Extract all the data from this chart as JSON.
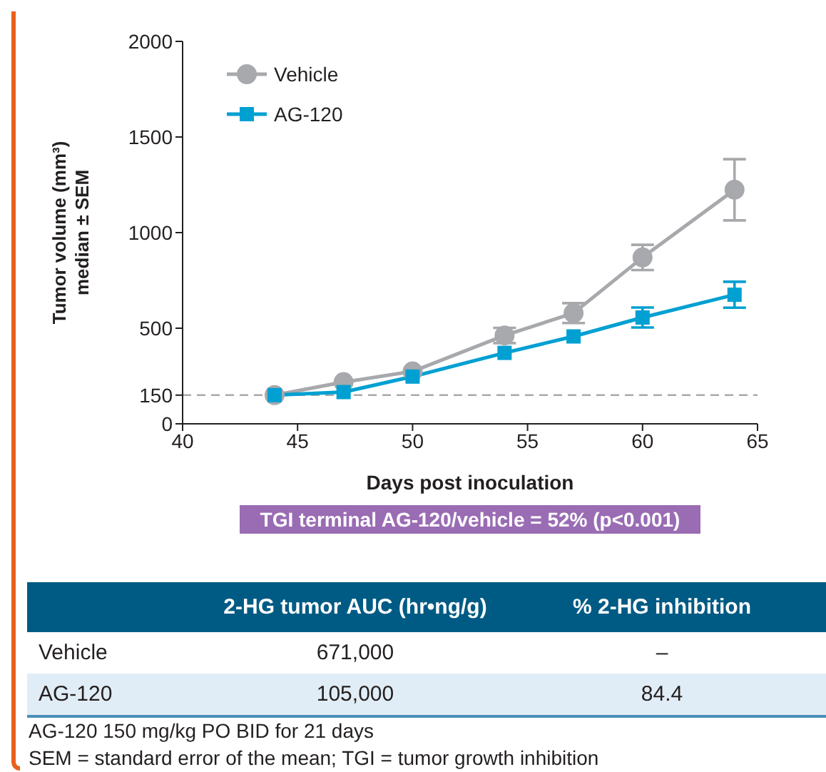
{
  "chart_data": {
    "type": "line",
    "xlabel": "Days post inoculation",
    "ylabel": "Tumor volume (mm³)\nmedian ± SEM",
    "x": [
      44,
      47,
      50,
      54,
      57,
      60,
      64
    ],
    "series": [
      {
        "name": "Vehicle",
        "color": "#a7a9ac",
        "marker": "circle",
        "values": [
          150,
          218,
          274,
          462,
          579,
          870,
          1224
        ],
        "errors": [
          null,
          null,
          null,
          40,
          52,
          66,
          160
        ]
      },
      {
        "name": "AG-120",
        "color": "#00a0d2",
        "marker": "square",
        "values": [
          150,
          166,
          247,
          371,
          457,
          556,
          675
        ],
        "errors": [
          null,
          null,
          null,
          null,
          null,
          52,
          68
        ]
      }
    ],
    "xlim": [
      40,
      65
    ],
    "xticks": [
      40,
      45,
      50,
      55,
      60,
      65
    ],
    "ylim": [
      0,
      2000
    ],
    "yticks": [
      0,
      150,
      500,
      1000,
      1500,
      2000
    ],
    "ref_lines": [
      {
        "axis": "y",
        "value": 150,
        "color": "#a7a9ac",
        "line_style": "dashed"
      }
    ],
    "grid": false,
    "legend": "top left",
    "line_style": "solid",
    "annotations": [
      "TGI terminal AG-120/vehicle = 52% (p<0.001)",
      "2-HG tumor AUC (hr•ng/g)",
      "% 2-HG inhibition",
      "Vehicle",
      "671,000",
      "–",
      "AG-120",
      "105,000",
      "84.4",
      "AG-120 150 mg/kg PO BID for 21 days",
      "SEM = standard error of the mean; TGI = tumor growth inhibition"
    ]
  }
}
